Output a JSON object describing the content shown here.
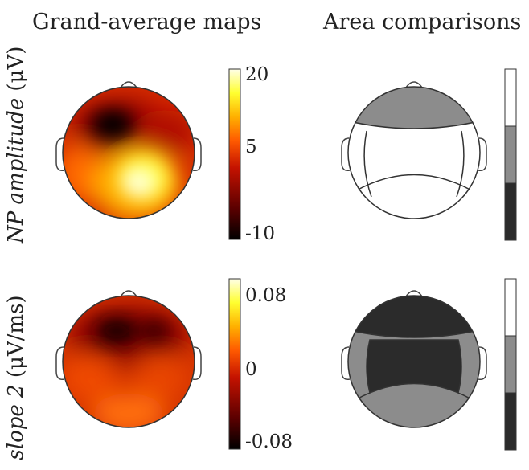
{
  "column_titles": {
    "left": "Grand-average maps",
    "right": "Area comparisons"
  },
  "rows": [
    {
      "label_italic": "NP amplitude",
      "label_unit": " (μV)",
      "colorbar_ticks": [
        "20",
        "5",
        "-10"
      ],
      "area_fills": {
        "frontal": "#8c8c8c",
        "central": "#ffffff",
        "posterior": "#ffffff"
      }
    },
    {
      "label_italic": "slope 2",
      "label_unit": " (μV/ms)",
      "colorbar_ticks": [
        "0.08",
        "0",
        "-0.08"
      ],
      "area_fills": {
        "frontal": "#2b2b2b",
        "central": "#2b2b2b",
        "posterior": "#8c8c8c",
        "temporal": "#8c8c8c"
      }
    }
  ],
  "gray_scale_colors": [
    "#ffffff",
    "#8c8c8c",
    "#2b2b2b"
  ],
  "heat_colors": [
    "#000000",
    "#5a0000",
    "#c41200",
    "#ff5a00",
    "#ffb000",
    "#ffff30",
    "#ffffe8"
  ]
}
